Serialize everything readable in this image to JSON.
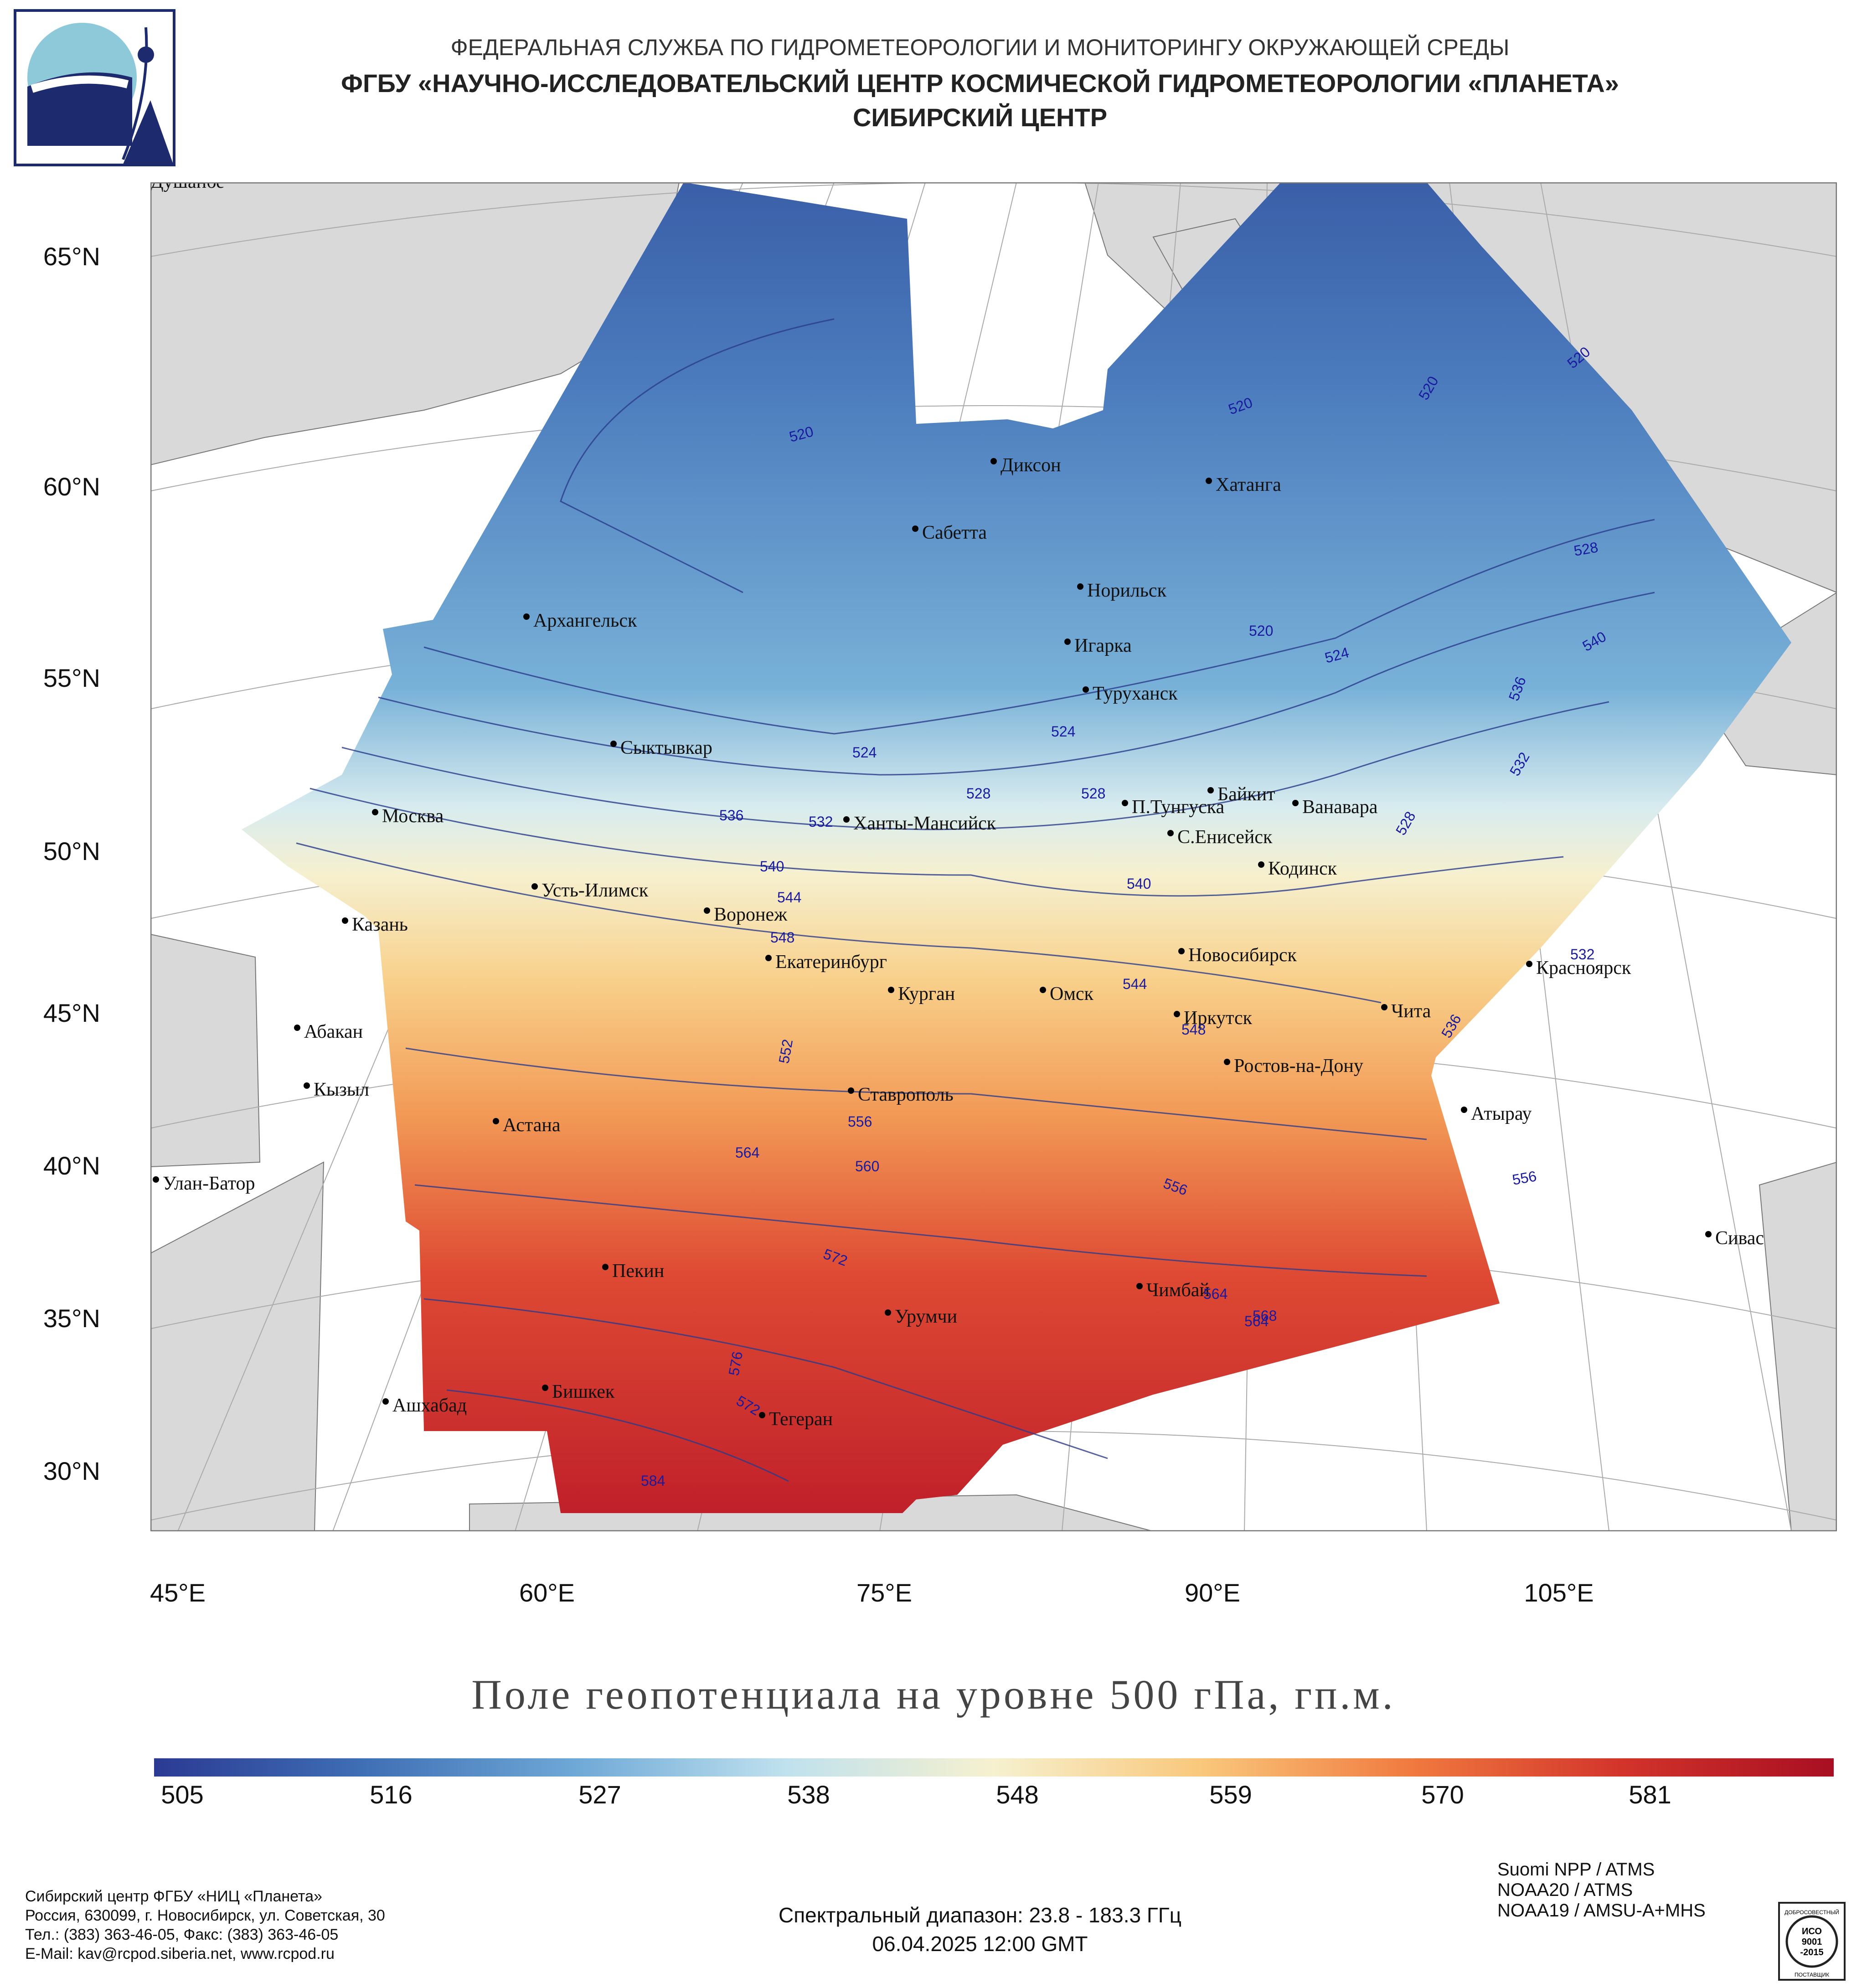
{
  "header": {
    "line1": "ФЕДЕРАЛЬНАЯ СЛУЖБА ПО ГИДРОМЕТЕОРОЛОГИИ И МОНИТОРИНГУ ОКРУЖАЮЩЕЙ СРЕДЫ",
    "line2": "ФГБУ «НАУЧНО-ИССЛЕДОВАТЕЛЬСКИЙ ЦЕНТР КОСМИЧЕСКОЙ ГИДРОМЕТЕОРОЛОГИИ «ПЛАНЕТА»",
    "line3": "СИБИРСКИЙ ЦЕНТР"
  },
  "map": {
    "title": "Поле геопотенциала на уровне 500 гПа, гп.м.",
    "lat_labels": [
      "65°N",
      "60°N",
      "55°N",
      "50°N",
      "45°N",
      "40°N",
      "35°N",
      "30°N"
    ],
    "lon_labels": [
      "45°E",
      "60°E",
      "75°E",
      "90°E",
      "105°E"
    ],
    "cities": [
      "Диксон",
      "Хатанга",
      "Сабетта",
      "Норильск",
      "Игарка",
      "Туруханск",
      "Архангельск",
      "Сыктывкар",
      "Москва",
      "Ханты-Мансийск",
      "П.Тунгуска",
      "Байкит",
      "Ванавара",
      "С.Енисейск",
      "Кодинск",
      "Усть-Илимск",
      "Казань",
      "Воронеж",
      "Екатеринбург",
      "Курган",
      "Омск",
      "Новосибирск",
      "Красноярск",
      "Чита",
      "Иркутск",
      "Абакан",
      "Ростов-на-Дону",
      "Кызыл",
      "Ставрополь",
      "Астана",
      "Атырау",
      "Улан-Батор",
      "Сивас",
      "Пекин",
      "Чимбай",
      "Урумчи",
      "Бишкек",
      "Ашхабад",
      "Тегеран",
      "Душанбе"
    ],
    "contour_labels": [
      "520",
      "520",
      "520",
      "520",
      "520",
      "524",
      "524",
      "524",
      "528",
      "528",
      "528",
      "528",
      "532",
      "532",
      "532",
      "536",
      "536",
      "536",
      "540",
      "540",
      "540",
      "544",
      "544",
      "548",
      "548",
      "552",
      "556",
      "556",
      "556",
      "560",
      "564",
      "564",
      "564",
      "568",
      "572",
      "572",
      "576",
      "584"
    ],
    "colors": {
      "land": "#d9d9d9",
      "sea": "#ffffff",
      "contour": "#2a3c8c",
      "contour_label": "#1a1aa0"
    }
  },
  "colorbar": {
    "labels": [
      "505",
      "516",
      "527",
      "538",
      "548",
      "559",
      "570",
      "581"
    ],
    "colors": [
      "#2b3a93",
      "#3f6fb5",
      "#6ea8d6",
      "#bfe1ee",
      "#f6f1cf",
      "#f9c77a",
      "#f0793f",
      "#d2332a",
      "#a80f22"
    ]
  },
  "footer": {
    "org_line1": "Сибирский центр ФГБУ «НИЦ «Планета»",
    "org_line2": "Россия, 630099, г. Новосибирск, ул. Советская, 30",
    "org_line3": "Тел.: (383) 363-46-05, Факс: (383) 363-46-05",
    "org_line4": "E-Mail: kav@rcpod.siberia.net, www.rcpod.ru",
    "spectral": "Спектральный диапазон: 23.8 - 183.3 ГГц",
    "datetime": "06.04.2025 12:00 GMT",
    "satellites": [
      "Suomi NPP / ATMS",
      "NOAA20 / ATMS",
      "NOAA19 / AMSU-A+MHS"
    ],
    "iso_badge": {
      "top": "ДОБРОСОВЕСТНЫЙ",
      "mid1": "ИСО",
      "mid2": "9001",
      "mid3": "-2015",
      "bottom": "ПОСТАВЩИК"
    }
  }
}
